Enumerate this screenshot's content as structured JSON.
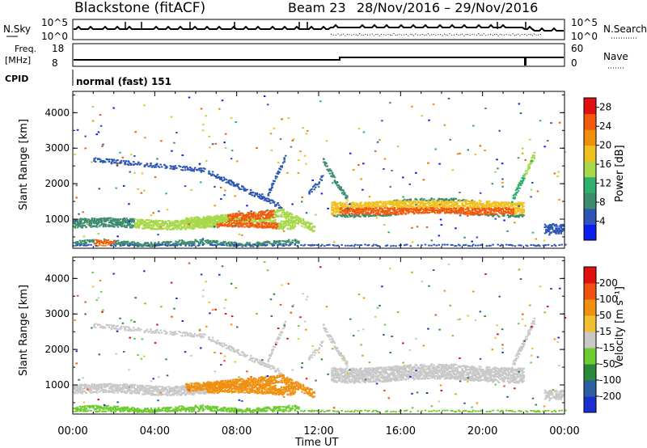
{
  "header": {
    "station": "Blackstone (fitACF)",
    "beam": "Beam 23",
    "dates": "28/Nov/2016 – 29/Nov/2016"
  },
  "nsky_panel": {
    "left_label": "N.Sky",
    "left_ticks": [
      "10^5",
      "10^0"
    ],
    "right_label": "N.Search",
    "right_ticks": [
      "10^5",
      "10^0"
    ]
  },
  "freq_panel": {
    "left_label_1": "Freq.",
    "left_label_2": "[MHz]",
    "left_ticks": [
      "18",
      "8"
    ],
    "right_label": "Nave",
    "right_ticks": [
      "60",
      "0"
    ]
  },
  "cpid": {
    "label": "CPID",
    "value": "normal (fast) 151"
  },
  "colors": {
    "power_scale": [
      "#0a1ef0",
      "#2d55b4",
      "#3d8c6e",
      "#2cb06a",
      "#a6d84a",
      "#f0c020",
      "#f0900a",
      "#f05a0a",
      "#e01010"
    ],
    "velocity_scale": [
      "#1a2fd0",
      "#2a60a0",
      "#2a8a3c",
      "#6ccc30",
      "#c8c8c8",
      "#f0c030",
      "#f09010",
      "#f05010",
      "#e01010"
    ]
  },
  "chart_data": [
    {
      "type": "heatmap",
      "name": "power",
      "xlabel": "Time UT",
      "ylabel": "Slant Range [km]",
      "x_ticks": [
        "00:00",
        "04:00",
        "08:00",
        "12:00",
        "16:00",
        "20:00",
        "00:00"
      ],
      "y_ticks": [
        "1000",
        "2000",
        "3000",
        "4000"
      ],
      "ylim": [
        180,
        4600
      ],
      "xlim_hours": [
        0,
        24
      ],
      "colorbar_label": "Power [dB]",
      "colorbar_ticks": [
        "4",
        "8",
        "12",
        "16",
        "20",
        "24",
        "28"
      ],
      "colorbar_range": [
        0,
        30
      ]
    },
    {
      "type": "heatmap",
      "name": "velocity",
      "xlabel": "Time UT",
      "ylabel": "Slant Range [km]",
      "x_ticks": [
        "00:00",
        "04:00",
        "08:00",
        "12:00",
        "16:00",
        "20:00",
        "00:00"
      ],
      "y_ticks": [
        "1000",
        "2000",
        "3000",
        "4000"
      ],
      "ylim": [
        180,
        4600
      ],
      "xlim_hours": [
        0,
        24
      ],
      "colorbar_label": "Velocity [m s⁻¹]",
      "colorbar_ticks": [
        "200",
        "100",
        "50",
        "15",
        "-15",
        "-50",
        "-100",
        "-200"
      ],
      "colorbar_range": [
        -250,
        250
      ]
    }
  ],
  "axis": {
    "xlabel": "Time UT"
  }
}
